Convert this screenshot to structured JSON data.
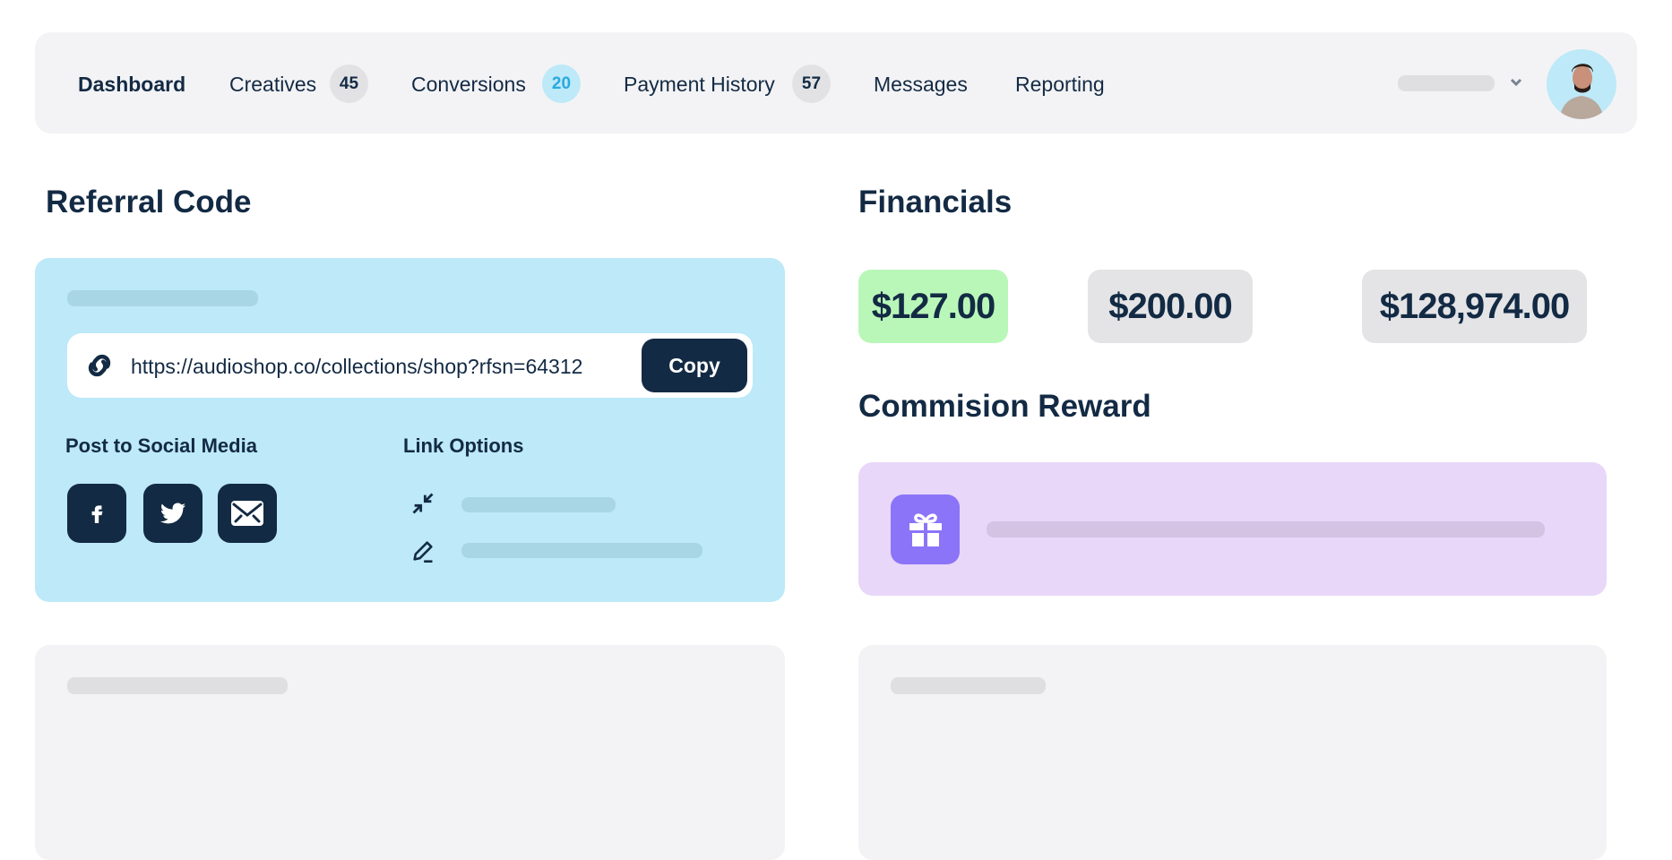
{
  "nav": {
    "items": [
      {
        "label": "Dashboard"
      },
      {
        "label": "Creatives",
        "badge": "45"
      },
      {
        "label": "Conversions",
        "badge": "20"
      },
      {
        "label": "Payment History",
        "badge": "57"
      },
      {
        "label": "Messages"
      },
      {
        "label": "Reporting"
      }
    ],
    "active": "Dashboard",
    "user_menu_icon": "chevron-down-icon",
    "avatar": "user-avatar"
  },
  "referral": {
    "title": "Referral Code",
    "url": "https://audioshop.co/collections/shop?rfsn=64312",
    "copy_label": "Copy",
    "social_title": "Post to Social Media",
    "social": [
      "facebook-icon",
      "twitter-icon",
      "mail-icon"
    ],
    "link_options_title": "Link Options",
    "link_options_icons": [
      "shrink-icon",
      "edit-icon"
    ]
  },
  "financials": {
    "title": "Financials",
    "values": [
      "$127.00",
      "$200.00",
      "$128,974.00"
    ]
  },
  "commission": {
    "title": "Commision Reward",
    "icon": "gift-icon"
  },
  "colors": {
    "navy": "#132a44",
    "card_blue": "#bde9f8",
    "card_purple": "#e8d7f8",
    "gift_purple": "#8b74f8",
    "green": "#b9f7b9",
    "badge_blue_text": "#29a9e0"
  }
}
